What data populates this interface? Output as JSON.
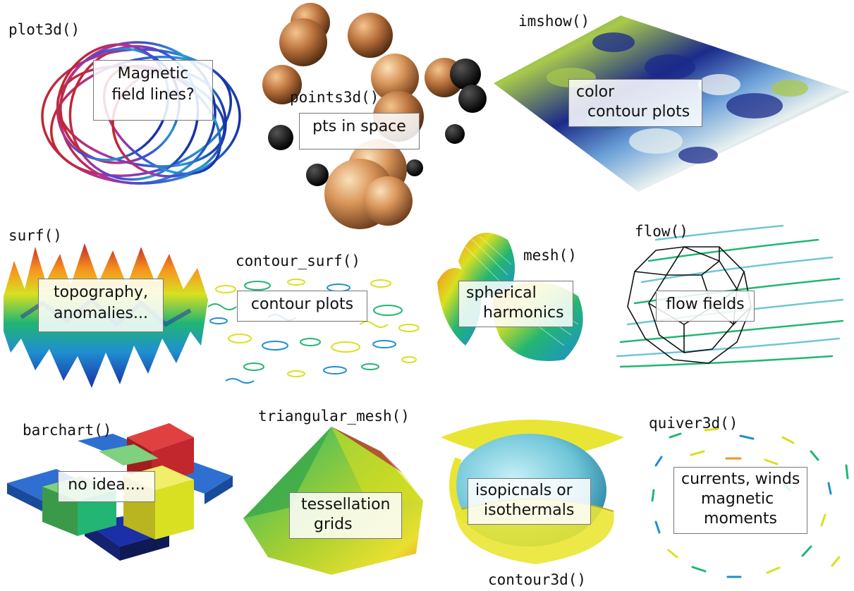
{
  "panels": [
    {
      "id": "plot3d",
      "function": "plot3d()",
      "notes": [
        "Magnetic",
        "field lines?"
      ],
      "icon": "magnetic-field-lines-3d"
    },
    {
      "id": "points3d",
      "function": "points3d()",
      "notes": [
        "pts in space"
      ],
      "icon": "spheres-in-space"
    },
    {
      "id": "imshow",
      "function": "imshow()",
      "notes": [
        "color",
        "contour plots"
      ],
      "icon": "color-image-plane"
    },
    {
      "id": "surf",
      "function": "surf()",
      "notes": [
        "topography,",
        "anomalies..."
      ],
      "icon": "rainbow-surface"
    },
    {
      "id": "contour_surf",
      "function": "contour_surf()",
      "notes": [
        "contour plots"
      ],
      "icon": "contour-lines"
    },
    {
      "id": "mesh",
      "function": "mesh()",
      "notes": [
        "spherical",
        "harmonics"
      ],
      "icon": "spherical-harmonic-mesh"
    },
    {
      "id": "flow",
      "function": "flow()",
      "notes": [
        "flow fields"
      ],
      "icon": "streamlines-polyhedron"
    },
    {
      "id": "barchart",
      "function": "barchart()",
      "notes": [
        "no idea...."
      ],
      "icon": "3d-bar-chart"
    },
    {
      "id": "triangular_mesh",
      "function": "triangular_mesh()",
      "notes": [
        "tessellation",
        "grids"
      ],
      "icon": "triangular-mesh-dome"
    },
    {
      "id": "contour3d",
      "function": "contour3d()",
      "notes": [
        "isopicnals or",
        "isothermals"
      ],
      "icon": "isosurface"
    },
    {
      "id": "quiver3d",
      "function": "quiver3d()",
      "notes": [
        "currents, winds",
        "magnetic",
        "moments"
      ],
      "icon": "vector-arrows"
    }
  ],
  "colors": {
    "rainbow": [
      "#1a2fa8",
      "#1f8fd0",
      "#22b573",
      "#d9e021",
      "#f7931e",
      "#c1272d"
    ],
    "sphere": "#d9955a",
    "sphere_dark": "#111111",
    "imshow": [
      "#1b2a8a",
      "#2e8b57",
      "#a8c94c",
      "#ffffff"
    ],
    "yellow": "#e9e534",
    "cyan": "#6fc6d8"
  }
}
